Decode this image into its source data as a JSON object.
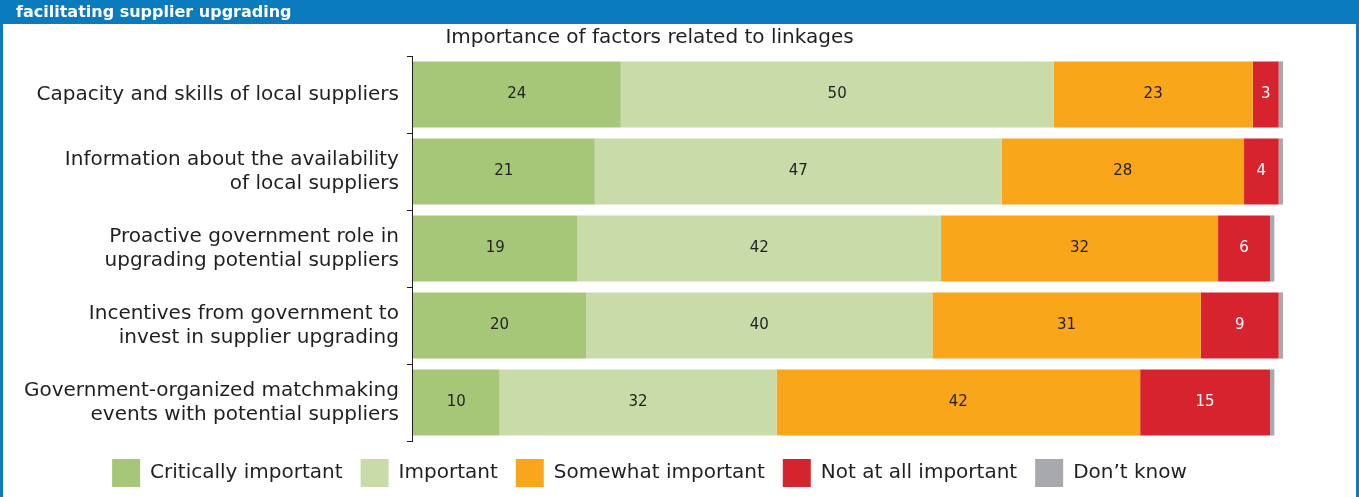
{
  "chart_data": {
    "type": "bar",
    "orientation": "horizontal",
    "stacked": true,
    "title": "Importance of factors related to linkages",
    "subtitle": "facilitating supplier upgrading",
    "categories": [
      "Capacity and skills of local suppliers",
      "Information about the availability of local suppliers",
      "Proactive government role in upgrading potential suppliers",
      "Incentives from government to invest in supplier upgrading",
      "Government-organized matchmaking events with potential suppliers"
    ],
    "series": [
      {
        "name": "Critically important",
        "color": "#a5c777",
        "values": [
          24,
          21,
          19,
          20,
          10
        ],
        "value_labels": [
          "24",
          "21",
          "19",
          "20",
          "10"
        ]
      },
      {
        "name": "Important",
        "color": "#c8dba8",
        "values": [
          50,
          47,
          42,
          40,
          32
        ],
        "value_labels": [
          "50",
          "47",
          "42",
          "40",
          "32"
        ]
      },
      {
        "name": "Somewhat important",
        "color": "#f9a61b",
        "values": [
          23,
          28,
          32,
          31,
          42
        ],
        "value_labels": [
          "23",
          "28",
          "32",
          "31",
          "42"
        ]
      },
      {
        "name": "Not at all important",
        "color": "#d7232e",
        "values": [
          3,
          4,
          6,
          9,
          15
        ],
        "value_labels": [
          "3",
          "4",
          "6",
          "9",
          "15"
        ]
      },
      {
        "name": "Don’t know",
        "color": "#a7a9ac",
        "values": [
          0.5,
          0.5,
          0.5,
          0.5,
          0.5
        ],
        "value_labels": [
          null,
          null,
          null,
          null,
          null
        ]
      }
    ],
    "legend": "bottom"
  }
}
